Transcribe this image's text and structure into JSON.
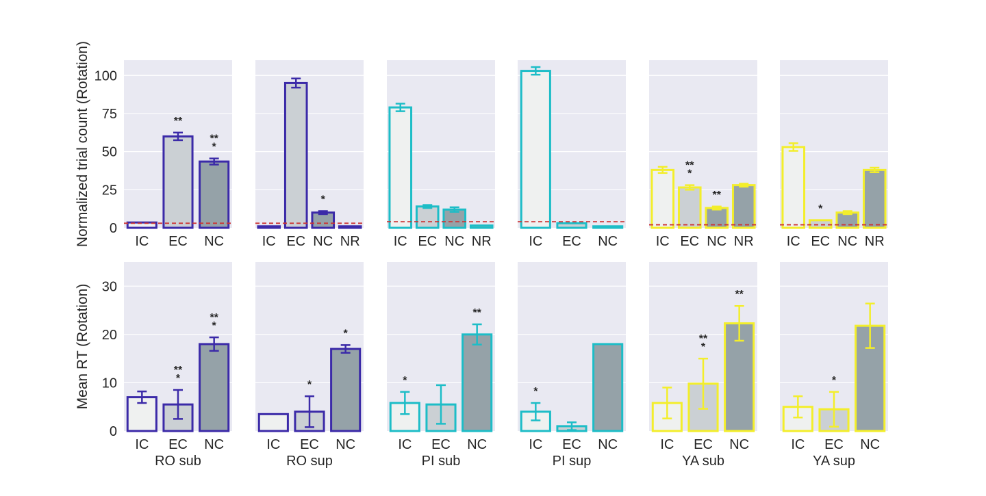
{
  "chart_data": {
    "type": "bar",
    "colors": {
      "RO": "#3b2aa8",
      "PI": "#1dbdc7",
      "YA": "#f3ee2b",
      "chance_line": "#cc3333",
      "panel_bg": "#e9e9f2",
      "fill_IC": "#eff1f0",
      "fill_EC": "#cbd0d4",
      "fill_NC": "#95a2a8",
      "fill_NR": "#95a2a8"
    },
    "rows": [
      {
        "ylabel": "Normalized trial count (Rotation)",
        "ylim": [
          0,
          110
        ],
        "yticks": [
          0,
          25,
          50,
          75,
          100
        ],
        "panels": [
          {
            "group": "RO",
            "chance": 3,
            "categories": [
              "IC",
              "EC",
              "NC"
            ],
            "values": [
              3.5,
              60,
              43.5
            ],
            "errors": [
              0,
              2.5,
              2
            ],
            "stars": [
              "",
              "**",
              "**|*"
            ]
          },
          {
            "group": "RO",
            "chance": 3,
            "categories": [
              "IC",
              "EC",
              "NC",
              "NR"
            ],
            "values": [
              1,
              95,
              10,
              1
            ],
            "errors": [
              0,
              3,
              1,
              0
            ],
            "stars": [
              "",
              "",
              "*",
              ""
            ]
          },
          {
            "group": "PI",
            "chance": 4,
            "categories": [
              "IC",
              "EC",
              "NC",
              "NR"
            ],
            "values": [
              79,
              14,
              12,
              1.5
            ],
            "errors": [
              2.5,
              1,
              1.5,
              0
            ],
            "stars": [
              "",
              "",
              "",
              ""
            ]
          },
          {
            "group": "PI",
            "chance": 4,
            "categories": [
              "IC",
              "EC",
              "NC"
            ],
            "values": [
              103,
              3,
              1
            ],
            "errors": [
              2.5,
              0,
              0
            ],
            "stars": [
              "",
              "",
              ""
            ]
          },
          {
            "group": "YA",
            "chance": 2,
            "categories": [
              "IC",
              "EC",
              "NC",
              "NR"
            ],
            "values": [
              38,
              26.5,
              13,
              28
            ],
            "errors": [
              2,
              1.5,
              1,
              1
            ],
            "stars": [
              "",
              "**|*",
              "**",
              ""
            ]
          },
          {
            "group": "YA",
            "chance": 2,
            "categories": [
              "IC",
              "EC",
              "NC",
              "NR"
            ],
            "values": [
              53,
              5,
              10,
              38
            ],
            "errors": [
              2.5,
              0,
              1,
              1.5
            ],
            "stars": [
              "",
              "*",
              "",
              ""
            ]
          }
        ]
      },
      {
        "ylabel": "Mean RT (Rotation)",
        "ylim": [
          0,
          35
        ],
        "yticks": [
          0,
          10,
          20,
          30
        ],
        "panels": [
          {
            "group": "RO",
            "name": "RO sub",
            "categories": [
              "IC",
              "EC",
              "NC"
            ],
            "values": [
              7,
              5.5,
              18
            ],
            "errors": [
              1.2,
              3,
              1.4
            ],
            "stars": [
              "",
              "**|*",
              "**|*"
            ]
          },
          {
            "group": "RO",
            "name": "RO sup",
            "categories": [
              "IC",
              "EC",
              "NC"
            ],
            "values": [
              3.5,
              4,
              17
            ],
            "errors": [
              0,
              3.2,
              0.8
            ],
            "stars": [
              "",
              "*",
              "*"
            ]
          },
          {
            "group": "PI",
            "name": "PI sub",
            "categories": [
              "IC",
              "EC",
              "NC"
            ],
            "values": [
              5.8,
              5.5,
              20
            ],
            "errors": [
              2.3,
              4,
              2.1
            ],
            "stars": [
              "*",
              "",
              "**"
            ]
          },
          {
            "group": "PI",
            "name": "PI sup",
            "categories": [
              "IC",
              "EC",
              "NC"
            ],
            "values": [
              4,
              1,
              18
            ],
            "errors": [
              1.8,
              0.8,
              0
            ],
            "stars": [
              "*",
              "",
              ""
            ]
          },
          {
            "group": "YA",
            "name": "YA sub",
            "categories": [
              "IC",
              "EC",
              "NC"
            ],
            "values": [
              5.8,
              9.8,
              22.3
            ],
            "errors": [
              3.2,
              5.2,
              3.6
            ],
            "stars": [
              "",
              "**|*",
              "**"
            ]
          },
          {
            "group": "YA",
            "name": "YA sup",
            "categories": [
              "IC",
              "EC",
              "NC"
            ],
            "values": [
              5,
              4.5,
              21.8
            ],
            "errors": [
              2.2,
              3.6,
              4.6
            ],
            "stars": [
              "",
              "*",
              ""
            ]
          }
        ]
      }
    ]
  }
}
